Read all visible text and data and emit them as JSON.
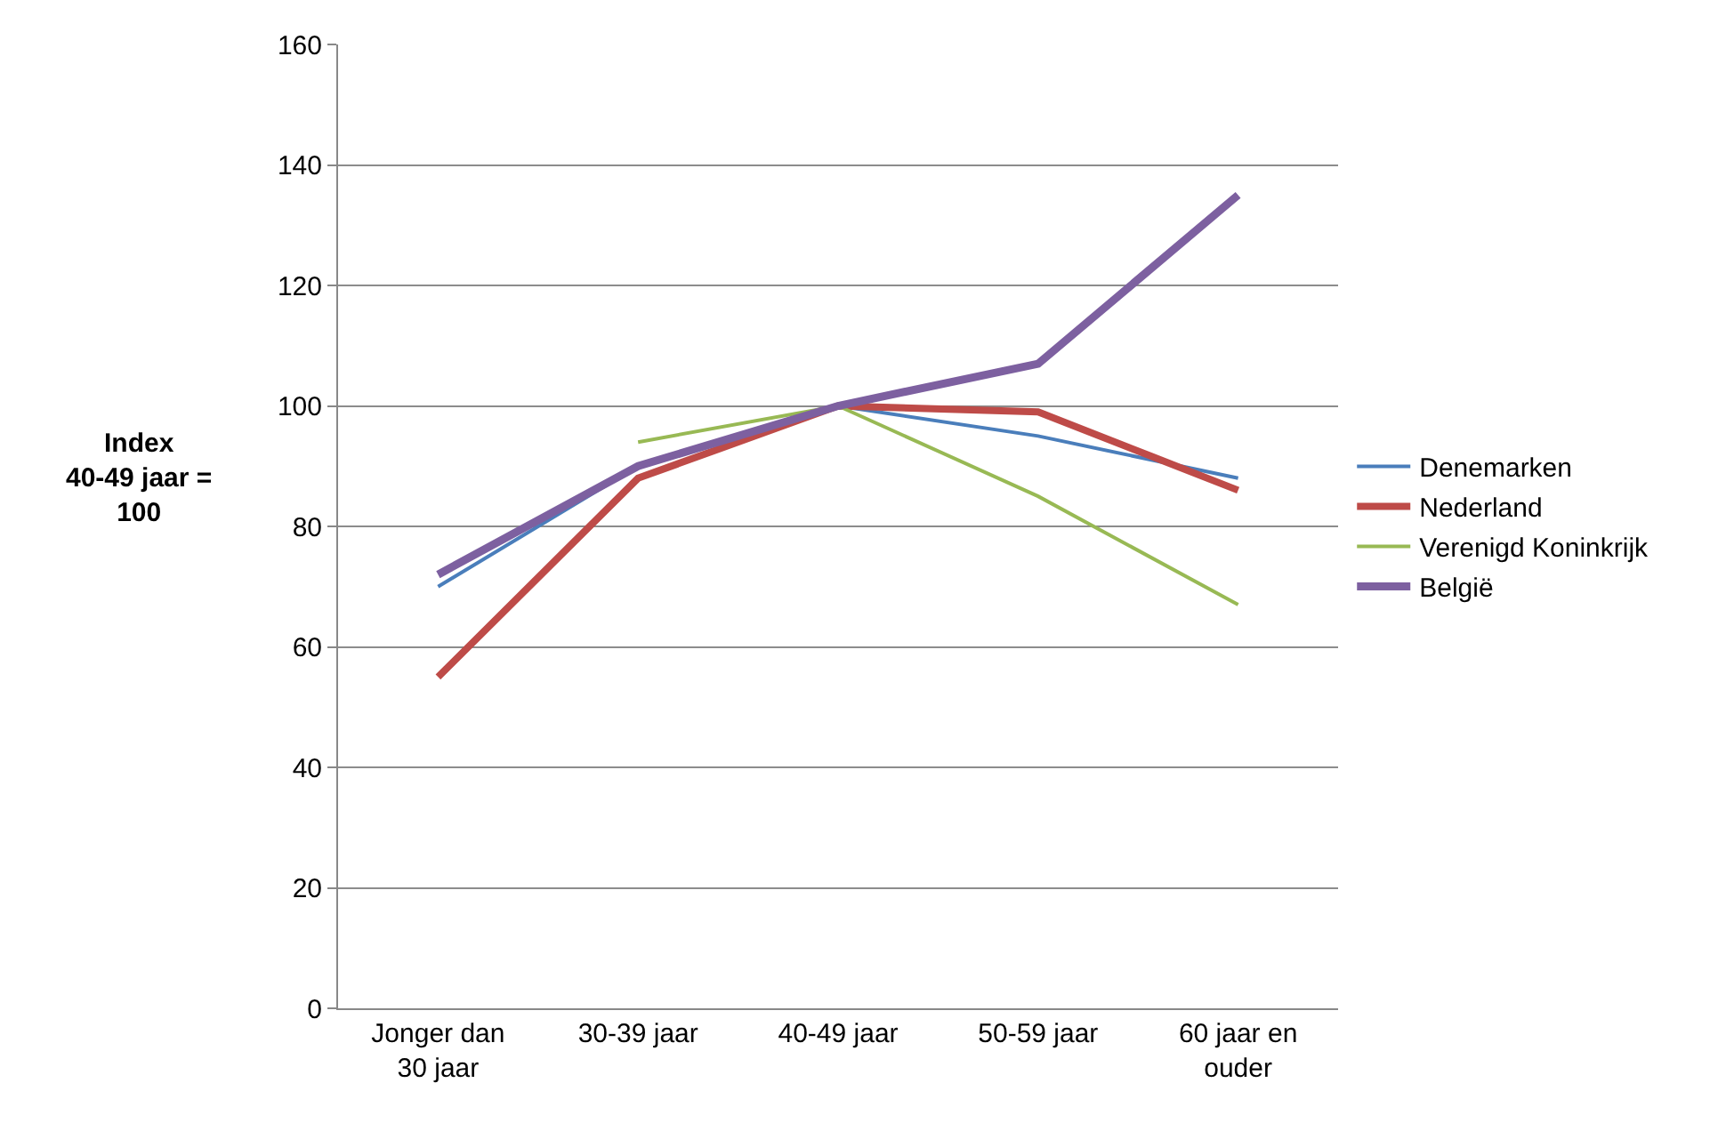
{
  "chart_data": {
    "type": "line",
    "ylabel": "Index\n40-49 jaar =\n100",
    "categories": [
      "Jonger dan 30 jaar",
      "30-39 jaar",
      "40-49 jaar",
      "50-59 jaar",
      "60 jaar en ouder"
    ],
    "series": [
      {
        "name": "Denemarken",
        "color": "#4a7ebb",
        "values": [
          70,
          90,
          100,
          95,
          88
        ]
      },
      {
        "name": "Nederland",
        "color": "#be4b48",
        "values": [
          55,
          88,
          100,
          99,
          86
        ]
      },
      {
        "name": "Verenigd Koninkrijk",
        "color": "#98b954",
        "values": [
          null,
          94,
          100,
          85,
          67
        ]
      },
      {
        "name": "België",
        "color": "#7d60a0",
        "values": [
          72,
          90,
          100,
          107,
          135
        ]
      }
    ],
    "ylim": [
      0,
      160
    ],
    "yticks": [
      0,
      20,
      40,
      60,
      80,
      100,
      120,
      140,
      160
    ],
    "grid": "y",
    "legend": "right",
    "marker": "none",
    "line_style": "solid"
  }
}
